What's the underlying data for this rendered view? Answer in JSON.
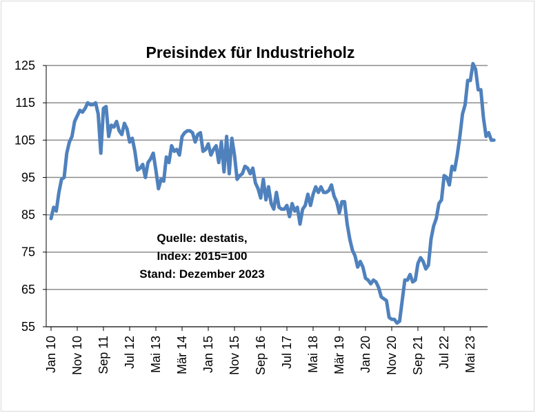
{
  "chart_data": {
    "type": "line",
    "title": "Preisindex für Industrieholz",
    "xlabel": "",
    "ylabel": "",
    "ylim": [
      55,
      125
    ],
    "yticks": [
      55,
      65,
      75,
      85,
      95,
      105,
      115,
      125
    ],
    "grid": true,
    "legend": "none",
    "line_color": "#4f81bd",
    "annotation": {
      "lines": [
        "Quelle: destatis,",
        "Index: 2015=100",
        "Stand: Dezember 2023"
      ]
    },
    "xtick_labels": [
      {
        "label": "Jan 10",
        "index": 0
      },
      {
        "label": "Nov 10",
        "index": 10
      },
      {
        "label": "Sep 11",
        "index": 20
      },
      {
        "label": "Jul 12",
        "index": 30
      },
      {
        "label": "Mai 13",
        "index": 40
      },
      {
        "label": "Mär 14",
        "index": 50
      },
      {
        "label": "Jan 15",
        "index": 60
      },
      {
        "label": "Nov 15",
        "index": 70
      },
      {
        "label": "Sep 16",
        "index": 80
      },
      {
        "label": "Jul 17",
        "index": 90
      },
      {
        "label": "Mai 18",
        "index": 100
      },
      {
        "label": "Mär 19",
        "index": 110
      },
      {
        "label": "Jan 20",
        "index": 120
      },
      {
        "label": "Nov 20",
        "index": 130
      },
      {
        "label": "Sep 21",
        "index": 140
      },
      {
        "label": "Jul 22",
        "index": 150
      },
      {
        "label": "Mai 23",
        "index": 160
      }
    ],
    "x_start": "Jan 10",
    "x_end": "Dez 23",
    "series": [
      {
        "values": [
          84,
          87,
          86,
          91,
          94.5,
          95,
          101.5,
          104.5,
          106,
          110,
          111.5,
          113,
          112.5,
          113.5,
          115,
          114.5,
          114.5,
          115,
          112,
          101.5,
          113.5,
          114,
          106,
          109,
          108.5,
          110,
          107.5,
          106.5,
          109.5,
          108,
          104.5,
          105.5,
          102,
          97,
          97.5,
          98.5,
          95,
          99,
          100,
          101.5,
          97,
          92,
          94.5,
          94,
          100.5,
          99,
          103.5,
          102,
          102.5,
          101,
          106,
          107,
          107.5,
          107.5,
          107,
          104.5,
          106.5,
          107,
          102,
          102.5,
          104,
          101,
          102.5,
          103.5,
          99,
          104.5,
          96.5,
          106,
          96,
          105.5,
          101,
          94.5,
          95.5,
          96,
          98,
          97.5,
          96,
          97.5,
          93.5,
          92,
          89.5,
          94.5,
          89,
          92.5,
          88,
          86.5,
          91,
          87,
          86.5,
          86.5,
          87.5,
          84.5,
          88,
          86,
          87,
          82.5,
          86.5,
          87.5,
          90.5,
          87.5,
          90.5,
          92.5,
          91,
          92.5,
          91,
          91,
          91.5,
          93,
          90,
          88.5,
          85.5,
          88.5,
          88.5,
          82.5,
          78.5,
          75.5,
          74,
          71,
          72.5,
          71,
          68,
          67.5,
          66.5,
          67.5,
          67,
          65.5,
          63,
          62.5,
          62,
          57.5,
          57,
          57,
          56,
          56.5,
          62,
          67.5,
          67.5,
          69,
          67,
          67.5,
          72,
          73.5,
          72.5,
          70.5,
          71.5,
          78.5,
          82,
          84,
          88,
          89,
          95.5,
          95,
          93,
          98,
          97,
          101,
          106,
          112,
          114.5,
          121,
          121,
          125.5,
          124,
          118.5,
          118.5,
          111,
          106,
          107,
          105,
          105
        ]
      }
    ]
  }
}
